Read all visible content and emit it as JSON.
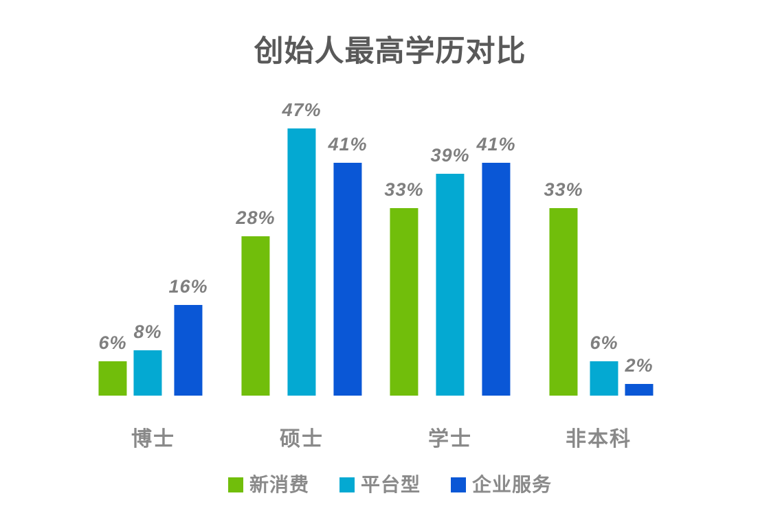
{
  "title": "创始人最高学历对比",
  "chart_data": {
    "type": "bar",
    "title": "创始人最高学历对比",
    "categories": [
      "博士",
      "硕士",
      "学士",
      "非本科"
    ],
    "series": [
      {
        "name": "新消费",
        "color": "#71BE0B",
        "values": [
          6,
          28,
          33,
          33
        ]
      },
      {
        "name": "平台型",
        "color": "#04A9D2",
        "values": [
          8,
          47,
          39,
          6
        ]
      },
      {
        "name": "企业服务",
        "color": "#0A57D6",
        "values": [
          16,
          41,
          41,
          2
        ]
      }
    ],
    "value_suffix": "%",
    "xlabel": "",
    "ylabel": "",
    "ylim": [
      0,
      50
    ],
    "grid": false,
    "axes_visible": false,
    "data_labels": true,
    "legend_position": "bottom",
    "background": "#ffffff",
    "title_color": "#595959",
    "label_color": "#7f7f7f",
    "category_label_color": "#898989"
  }
}
